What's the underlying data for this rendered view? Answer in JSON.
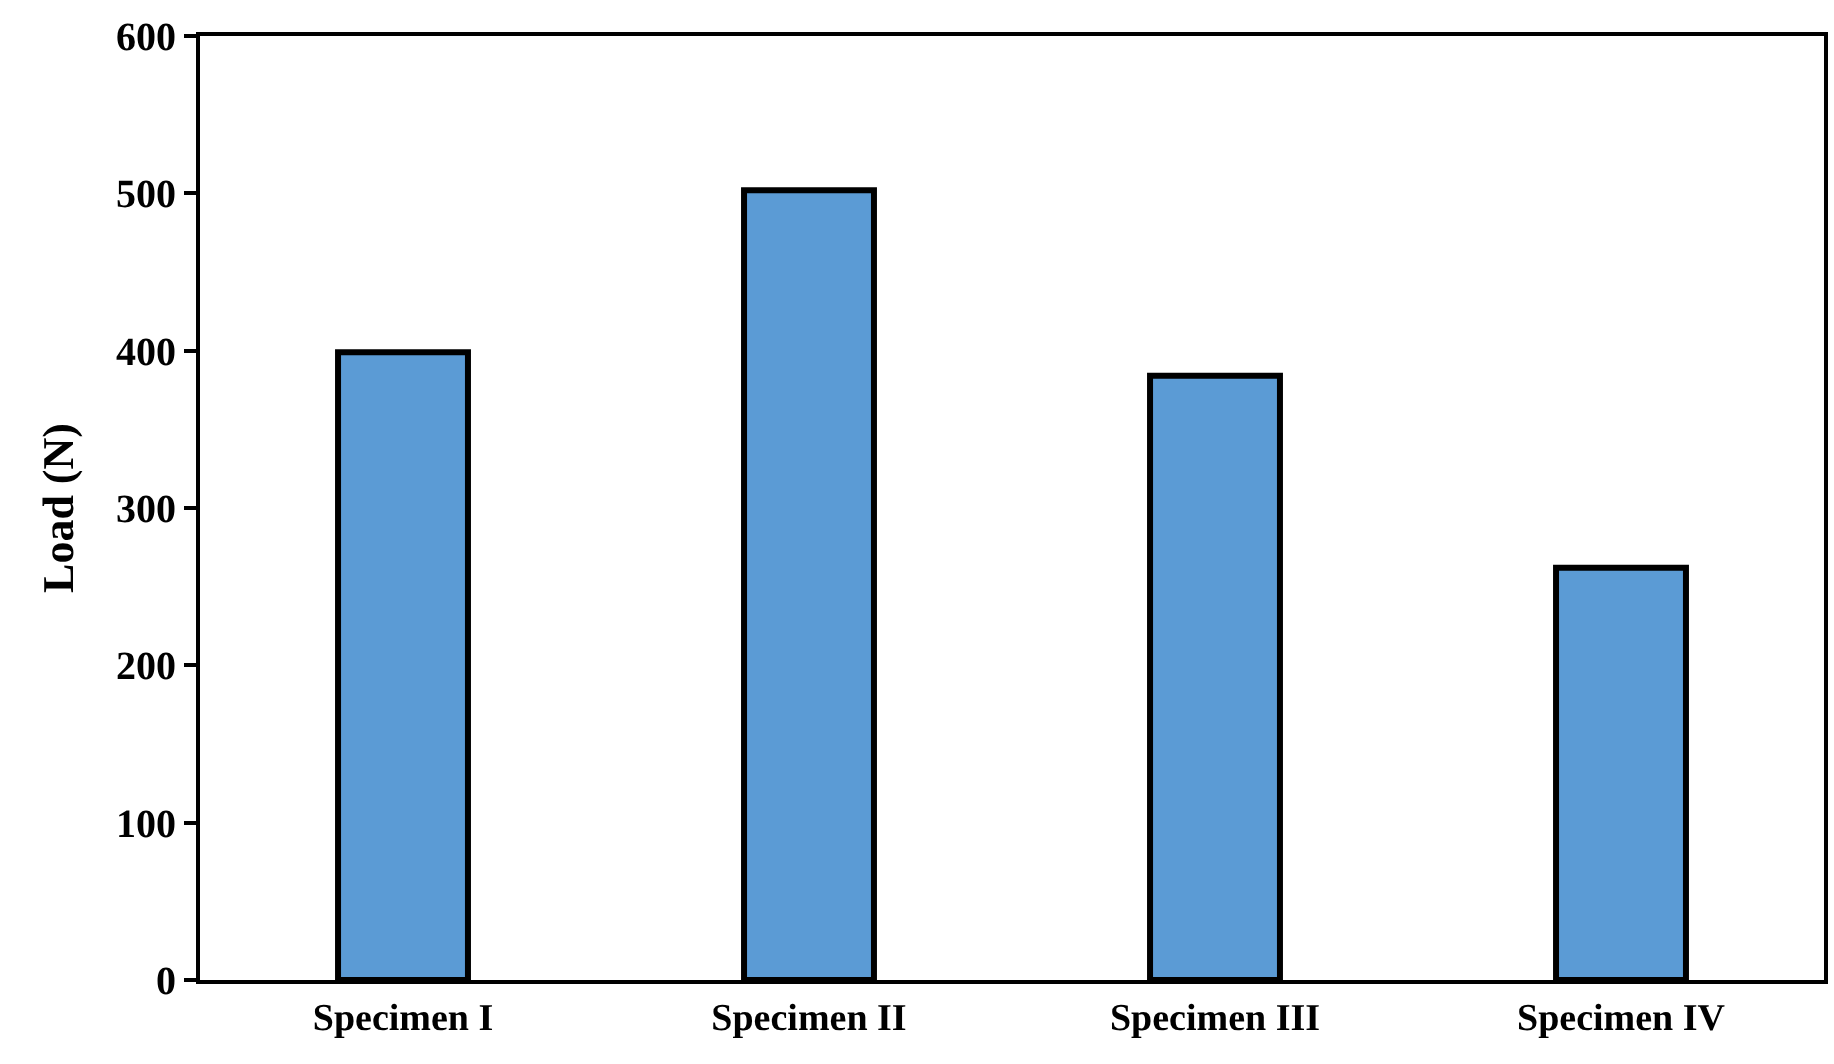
{
  "chart_data": {
    "type": "bar",
    "ylabel": "Load (N)",
    "categories": [
      "Specimen I",
      "Specimen II",
      "Specimen III",
      "Specimen IV"
    ],
    "values": [
      399,
      502,
      384,
      262
    ],
    "color": "#5b9bd5",
    "ylim": [
      0,
      600
    ],
    "yticks": [
      0,
      100,
      200,
      300,
      400,
      500,
      600
    ]
  }
}
